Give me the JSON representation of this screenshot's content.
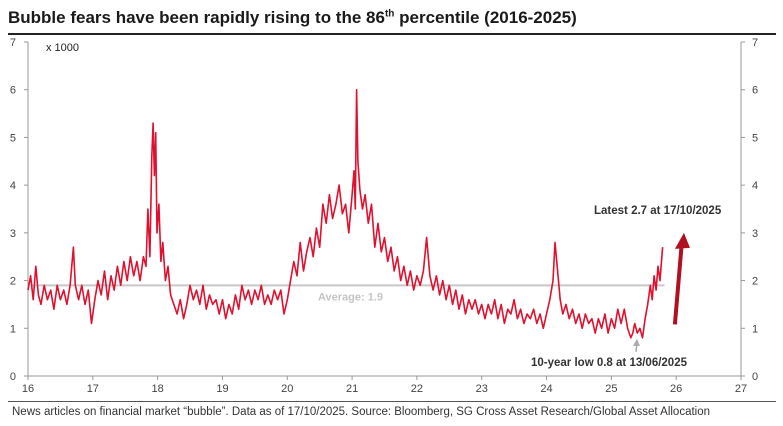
{
  "header": {
    "title_main": "Bubble fears have been rapidly rising to the 86",
    "title_sup": "th",
    "title_end": " percentile (2016-2025)"
  },
  "footnote": "News articles on financial market “bubble”. Data as of 17/10/2025. Source: Bloomberg, SG Cross Asset Research/Global Asset Allocation",
  "chart_data": {
    "type": "line",
    "title": "Bubble fears have been rapidly rising to the 86th percentile (2016-2025)",
    "unit_label": "x 1000",
    "xlim": [
      16,
      27
    ],
    "ylim": [
      0,
      7
    ],
    "x_ticks": [
      "16",
      "17",
      "18",
      "19",
      "20",
      "21",
      "22",
      "23",
      "24",
      "25",
      "26",
      "27"
    ],
    "y_ticks": [
      "0",
      "1",
      "2",
      "3",
      "4",
      "5",
      "6",
      "7"
    ],
    "grid": false,
    "series": [
      {
        "color": "#e0102f",
        "points": [
          [
            16.0,
            1.8
          ],
          [
            16.04,
            2.1
          ],
          [
            16.08,
            1.6
          ],
          [
            16.12,
            2.3
          ],
          [
            16.16,
            1.7
          ],
          [
            16.2,
            1.5
          ],
          [
            16.25,
            1.9
          ],
          [
            16.3,
            1.6
          ],
          [
            16.35,
            1.8
          ],
          [
            16.4,
            1.4
          ],
          [
            16.45,
            1.9
          ],
          [
            16.5,
            1.6
          ],
          [
            16.55,
            1.8
          ],
          [
            16.6,
            1.5
          ],
          [
            16.65,
            1.9
          ],
          [
            16.7,
            2.7
          ],
          [
            16.73,
            1.9
          ],
          [
            16.78,
            1.6
          ],
          [
            16.83,
            1.9
          ],
          [
            16.88,
            1.5
          ],
          [
            16.93,
            1.8
          ],
          [
            16.98,
            1.1
          ],
          [
            17.03,
            1.6
          ],
          [
            17.08,
            2.0
          ],
          [
            17.13,
            1.7
          ],
          [
            17.18,
            2.2
          ],
          [
            17.23,
            1.6
          ],
          [
            17.28,
            2.1
          ],
          [
            17.33,
            1.8
          ],
          [
            17.38,
            2.3
          ],
          [
            17.43,
            1.9
          ],
          [
            17.48,
            2.4
          ],
          [
            17.53,
            2.0
          ],
          [
            17.58,
            2.5
          ],
          [
            17.63,
            2.1
          ],
          [
            17.68,
            2.4
          ],
          [
            17.73,
            2.0
          ],
          [
            17.78,
            2.5
          ],
          [
            17.82,
            2.3
          ],
          [
            17.85,
            3.5
          ],
          [
            17.88,
            2.5
          ],
          [
            17.91,
            4.6
          ],
          [
            17.93,
            5.3
          ],
          [
            17.95,
            4.2
          ],
          [
            17.97,
            5.1
          ],
          [
            17.99,
            3.0
          ],
          [
            18.02,
            3.6
          ],
          [
            18.05,
            2.4
          ],
          [
            18.08,
            2.8
          ],
          [
            18.12,
            2.0
          ],
          [
            18.16,
            2.3
          ],
          [
            18.2,
            1.7
          ],
          [
            18.25,
            1.5
          ],
          [
            18.3,
            1.3
          ],
          [
            18.35,
            1.6
          ],
          [
            18.4,
            1.2
          ],
          [
            18.45,
            1.5
          ],
          [
            18.5,
            1.9
          ],
          [
            18.55,
            1.6
          ],
          [
            18.6,
            1.8
          ],
          [
            18.65,
            1.5
          ],
          [
            18.7,
            1.9
          ],
          [
            18.75,
            1.4
          ],
          [
            18.8,
            1.7
          ],
          [
            18.85,
            1.5
          ],
          [
            18.9,
            1.6
          ],
          [
            18.95,
            1.3
          ],
          [
            19.0,
            1.6
          ],
          [
            19.05,
            1.2
          ],
          [
            19.1,
            1.5
          ],
          [
            19.15,
            1.3
          ],
          [
            19.2,
            1.7
          ],
          [
            19.25,
            1.4
          ],
          [
            19.3,
            1.9
          ],
          [
            19.35,
            1.6
          ],
          [
            19.4,
            1.8
          ],
          [
            19.45,
            1.5
          ],
          [
            19.5,
            1.8
          ],
          [
            19.55,
            1.6
          ],
          [
            19.6,
            1.9
          ],
          [
            19.65,
            1.5
          ],
          [
            19.7,
            1.7
          ],
          [
            19.75,
            1.5
          ],
          [
            19.8,
            1.8
          ],
          [
            19.85,
            1.6
          ],
          [
            19.9,
            1.8
          ],
          [
            19.95,
            1.3
          ],
          [
            20.0,
            1.6
          ],
          [
            20.05,
            2.0
          ],
          [
            20.1,
            2.4
          ],
          [
            20.15,
            2.1
          ],
          [
            20.2,
            2.8
          ],
          [
            20.25,
            2.2
          ],
          [
            20.3,
            2.6
          ],
          [
            20.35,
            2.9
          ],
          [
            20.4,
            2.5
          ],
          [
            20.45,
            3.1
          ],
          [
            20.5,
            2.7
          ],
          [
            20.55,
            3.6
          ],
          [
            20.6,
            3.2
          ],
          [
            20.65,
            3.8
          ],
          [
            20.7,
            3.3
          ],
          [
            20.75,
            3.6
          ],
          [
            20.8,
            4.0
          ],
          [
            20.85,
            3.4
          ],
          [
            20.9,
            3.6
          ],
          [
            20.95,
            3.0
          ],
          [
            21.0,
            3.8
          ],
          [
            21.03,
            4.3
          ],
          [
            21.05,
            3.5
          ],
          [
            21.07,
            6.0
          ],
          [
            21.09,
            4.5
          ],
          [
            21.12,
            3.9
          ],
          [
            21.16,
            3.5
          ],
          [
            21.2,
            3.8
          ],
          [
            21.25,
            3.2
          ],
          [
            21.3,
            3.6
          ],
          [
            21.35,
            2.7
          ],
          [
            21.4,
            3.2
          ],
          [
            21.45,
            2.6
          ],
          [
            21.5,
            2.9
          ],
          [
            21.55,
            2.4
          ],
          [
            21.6,
            2.7
          ],
          [
            21.65,
            2.2
          ],
          [
            21.7,
            2.5
          ],
          [
            21.75,
            2.0
          ],
          [
            21.8,
            2.3
          ],
          [
            21.85,
            1.9
          ],
          [
            21.9,
            2.2
          ],
          [
            21.95,
            1.8
          ],
          [
            22.0,
            2.1
          ],
          [
            22.05,
            1.9
          ],
          [
            22.1,
            2.2
          ],
          [
            22.15,
            2.9
          ],
          [
            22.2,
            2.1
          ],
          [
            22.25,
            1.8
          ],
          [
            22.3,
            2.1
          ],
          [
            22.35,
            1.7
          ],
          [
            22.4,
            2.0
          ],
          [
            22.45,
            1.6
          ],
          [
            22.5,
            1.9
          ],
          [
            22.55,
            1.5
          ],
          [
            22.6,
            1.8
          ],
          [
            22.65,
            1.4
          ],
          [
            22.7,
            1.7
          ],
          [
            22.75,
            1.3
          ],
          [
            22.8,
            1.6
          ],
          [
            22.85,
            1.4
          ],
          [
            22.9,
            1.6
          ],
          [
            22.95,
            1.3
          ],
          [
            23.0,
            1.5
          ],
          [
            23.05,
            1.2
          ],
          [
            23.1,
            1.5
          ],
          [
            23.15,
            1.3
          ],
          [
            23.2,
            1.6
          ],
          [
            23.25,
            1.2
          ],
          [
            23.3,
            1.5
          ],
          [
            23.35,
            1.1
          ],
          [
            23.4,
            1.4
          ],
          [
            23.45,
            1.3
          ],
          [
            23.5,
            1.6
          ],
          [
            23.55,
            1.2
          ],
          [
            23.6,
            1.4
          ],
          [
            23.65,
            1.1
          ],
          [
            23.7,
            1.3
          ],
          [
            23.75,
            1.2
          ],
          [
            23.8,
            1.4
          ],
          [
            23.85,
            1.1
          ],
          [
            23.9,
            1.3
          ],
          [
            23.95,
            1.0
          ],
          [
            24.0,
            1.3
          ],
          [
            24.05,
            1.6
          ],
          [
            24.1,
            2.0
          ],
          [
            24.13,
            2.8
          ],
          [
            24.17,
            2.2
          ],
          [
            24.21,
            1.6
          ],
          [
            24.25,
            1.3
          ],
          [
            24.3,
            1.5
          ],
          [
            24.35,
            1.2
          ],
          [
            24.4,
            1.4
          ],
          [
            24.45,
            1.1
          ],
          [
            24.5,
            1.3
          ],
          [
            24.55,
            1.0
          ],
          [
            24.6,
            1.3
          ],
          [
            24.65,
            1.1
          ],
          [
            24.7,
            1.2
          ],
          [
            24.75,
            0.9
          ],
          [
            24.8,
            1.2
          ],
          [
            24.85,
            1.0
          ],
          [
            24.9,
            1.3
          ],
          [
            24.95,
            0.9
          ],
          [
            25.0,
            1.2
          ],
          [
            25.05,
            1.0
          ],
          [
            25.1,
            1.4
          ],
          [
            25.15,
            1.1
          ],
          [
            25.2,
            1.4
          ],
          [
            25.25,
            1.0
          ],
          [
            25.3,
            0.8
          ],
          [
            25.33,
            0.9
          ],
          [
            25.36,
            1.1
          ],
          [
            25.4,
            0.9
          ],
          [
            25.44,
            1.0
          ],
          [
            25.48,
            0.8
          ],
          [
            25.52,
            1.2
          ],
          [
            25.56,
            1.5
          ],
          [
            25.6,
            1.9
          ],
          [
            25.63,
            1.6
          ],
          [
            25.66,
            2.1
          ],
          [
            25.69,
            1.8
          ],
          [
            25.72,
            2.3
          ],
          [
            25.75,
            2.0
          ],
          [
            25.79,
            2.7
          ]
        ]
      }
    ],
    "average": {
      "value": 1.9,
      "label": "Average: 1.9"
    },
    "annotations": {
      "latest": "Latest 2.7 at 17/10/2025",
      "low": "10-year low 0.8 at 13/06/2025"
    }
  }
}
